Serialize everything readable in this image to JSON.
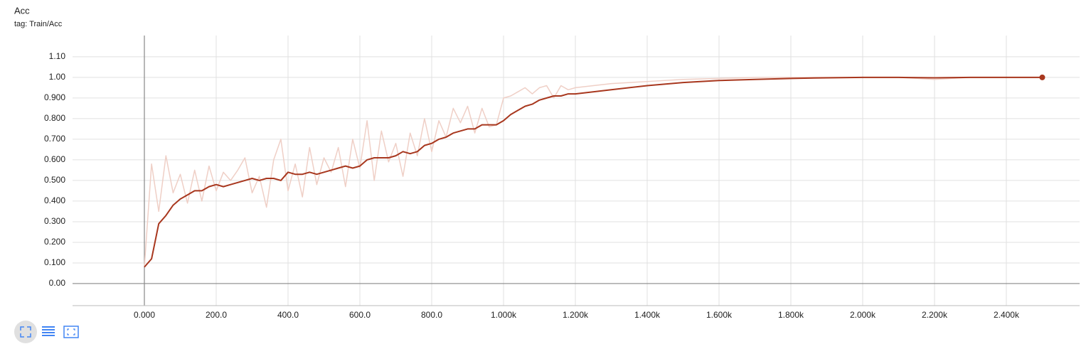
{
  "title": "Acc",
  "subtitle": "tag: Train/Acc",
  "chart_data": {
    "type": "line",
    "x": [
      0,
      20,
      40,
      60,
      80,
      100,
      120,
      140,
      160,
      180,
      200,
      220,
      240,
      260,
      280,
      300,
      320,
      340,
      360,
      380,
      400,
      420,
      440,
      460,
      480,
      500,
      520,
      540,
      560,
      580,
      600,
      620,
      640,
      660,
      680,
      700,
      720,
      740,
      760,
      780,
      800,
      820,
      840,
      860,
      880,
      900,
      920,
      940,
      960,
      980,
      1000,
      1020,
      1040,
      1060,
      1080,
      1100,
      1120,
      1140,
      1160,
      1180,
      1200,
      1300,
      1400,
      1500,
      1600,
      1700,
      1800,
      1900,
      2000,
      2100,
      2200,
      2300,
      2400,
      2500
    ],
    "series": [
      {
        "color": "#efcfc6",
        "values": [
          0.08,
          0.58,
          0.35,
          0.62,
          0.44,
          0.53,
          0.39,
          0.55,
          0.4,
          0.57,
          0.45,
          0.54,
          0.5,
          0.55,
          0.61,
          0.44,
          0.52,
          0.37,
          0.6,
          0.7,
          0.45,
          0.58,
          0.42,
          0.66,
          0.48,
          0.61,
          0.54,
          0.66,
          0.47,
          0.7,
          0.56,
          0.79,
          0.5,
          0.74,
          0.59,
          0.68,
          0.52,
          0.73,
          0.62,
          0.8,
          0.64,
          0.79,
          0.71,
          0.85,
          0.78,
          0.86,
          0.73,
          0.85,
          0.76,
          0.77,
          0.9,
          0.91,
          0.93,
          0.95,
          0.92,
          0.95,
          0.96,
          0.9,
          0.96,
          0.94,
          0.95,
          0.97,
          0.98,
          0.99,
          0.995,
          1.0,
          1.0,
          1.0,
          1.0,
          1.0,
          0.99,
          1.0,
          1.0,
          1.0
        ]
      },
      {
        "color": "#a8371e",
        "values": [
          0.08,
          0.12,
          0.29,
          0.33,
          0.38,
          0.41,
          0.43,
          0.45,
          0.45,
          0.47,
          0.48,
          0.47,
          0.48,
          0.49,
          0.5,
          0.51,
          0.5,
          0.51,
          0.51,
          0.5,
          0.54,
          0.53,
          0.53,
          0.54,
          0.53,
          0.54,
          0.55,
          0.56,
          0.57,
          0.56,
          0.57,
          0.6,
          0.61,
          0.61,
          0.61,
          0.62,
          0.64,
          0.63,
          0.64,
          0.67,
          0.68,
          0.7,
          0.71,
          0.73,
          0.74,
          0.75,
          0.75,
          0.77,
          0.77,
          0.77,
          0.79,
          0.82,
          0.84,
          0.86,
          0.87,
          0.89,
          0.9,
          0.91,
          0.91,
          0.92,
          0.92,
          0.94,
          0.96,
          0.975,
          0.985,
          0.99,
          0.995,
          0.998,
          1.0,
          1.0,
          0.998,
          1.0,
          1.0,
          1.0
        ]
      }
    ],
    "xlim": [
      -200,
      2604
    ],
    "ylim": [
      -0.107,
      1.203
    ],
    "xticks": [
      {
        "value": 0,
        "label": "0.000"
      },
      {
        "value": 200,
        "label": "200.0"
      },
      {
        "value": 400,
        "label": "400.0"
      },
      {
        "value": 600,
        "label": "600.0"
      },
      {
        "value": 800,
        "label": "800.0"
      },
      {
        "value": 1000,
        "label": "1.000k"
      },
      {
        "value": 1200,
        "label": "1.200k"
      },
      {
        "value": 1400,
        "label": "1.400k"
      },
      {
        "value": 1600,
        "label": "1.600k"
      },
      {
        "value": 1800,
        "label": "1.800k"
      },
      {
        "value": 2000,
        "label": "2.000k"
      },
      {
        "value": 2200,
        "label": "2.200k"
      },
      {
        "value": 2400,
        "label": "2.400k"
      }
    ],
    "yticks": [
      {
        "value": 0,
        "label": "0.00"
      },
      {
        "value": 0.1,
        "label": "0.100"
      },
      {
        "value": 0.2,
        "label": "0.200"
      },
      {
        "value": 0.3,
        "label": "0.300"
      },
      {
        "value": 0.4,
        "label": "0.400"
      },
      {
        "value": 0.5,
        "label": "0.500"
      },
      {
        "value": 0.6,
        "label": "0.600"
      },
      {
        "value": 0.7,
        "label": "0.700"
      },
      {
        "value": 0.8,
        "label": "0.800"
      },
      {
        "value": 0.9,
        "label": "0.900"
      },
      {
        "value": 1.0,
        "label": "1.00"
      },
      {
        "value": 1.1,
        "label": "1.10"
      }
    ],
    "grid": true
  }
}
